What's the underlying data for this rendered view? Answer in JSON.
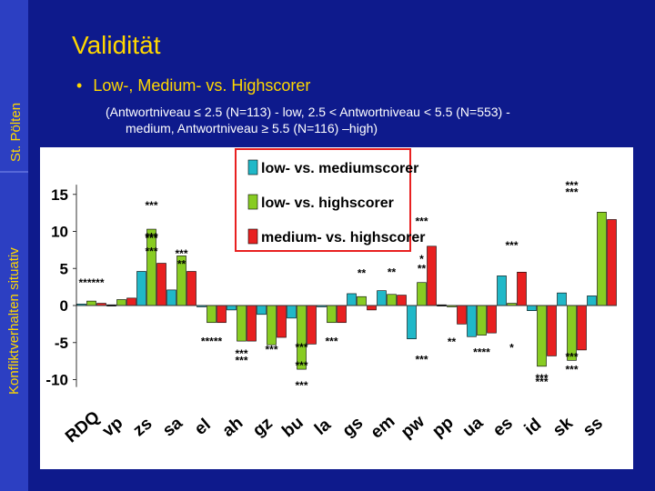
{
  "slide": {
    "title": "Validität",
    "side_label_top": "St. Pölten",
    "side_label_bottom": "Konfliktverhalten situativ",
    "bullet": "Low-, Medium- vs. Highscorer",
    "subtext_line1": "(Antwortniveau ≤ 2.5 (N=113) - low, 2.5 < Antwortniveau  < 5.5  (N=553) -",
    "subtext_line2": "medium, Antwortniveau ≥ 5.5 (N=116) –high)"
  },
  "chart_data": {
    "type": "bar",
    "categories": [
      "RDQ",
      "vp",
      "zs",
      "sa",
      "el",
      "ah",
      "gz",
      "bu",
      "la",
      "gs",
      "em",
      "pw",
      "pp",
      "ua",
      "es",
      "id",
      "sk",
      "ss"
    ],
    "ylim": [
      -11,
      16
    ],
    "yticks": [
      15,
      10,
      5,
      0,
      -5,
      -10
    ],
    "legend_position": "top-center",
    "colors": [
      "#20b8c8",
      "#88cc22",
      "#e82020"
    ],
    "series": [
      {
        "name": "low- vs. mediumscorer",
        "values": [
          0.2,
          0.1,
          4.6,
          2.1,
          0.0,
          -0.6,
          -1.2,
          -1.7,
          0.0,
          1.6,
          2.0,
          -4.5,
          0.1,
          -4.2,
          4.0,
          -0.7,
          1.7,
          1.3
        ]
      },
      {
        "name": "low- vs. highscorer",
        "values": [
          0.6,
          0.8,
          10.3,
          6.7,
          -2.3,
          -4.8,
          -5.3,
          -8.6,
          -2.3,
          1.2,
          1.5,
          3.1,
          0.0,
          -4.0,
          0.3,
          -8.2,
          -7.4,
          12.6
        ]
      },
      {
        "name": "medium- vs. highscorer",
        "values": [
          0.3,
          1.0,
          5.7,
          4.6,
          -2.3,
          -4.8,
          -4.3,
          -5.2,
          -2.3,
          -0.6,
          1.4,
          8.0,
          -2.5,
          -3.7,
          4.5,
          -6.8,
          -6.0,
          11.6
        ]
      }
    ],
    "annotations": [
      {
        "text": "******",
        "x": 0,
        "y": 3.2
      },
      {
        "text": "***",
        "x": 2,
        "y": 13.6
      },
      {
        "text": "***",
        "x": 2,
        "y": 7.4
      },
      {
        "text": "***",
        "x": 2,
        "y": 9.2
      },
      {
        "text": "***",
        "x": 2,
        "y": 9.4
      },
      {
        "text": "**",
        "x": 3,
        "y": 5.7
      },
      {
        "text": "***",
        "x": 3,
        "y": 7.1
      },
      {
        "text": "*****",
        "x": 4,
        "y": -4.7
      },
      {
        "text": "***",
        "x": 5,
        "y": -7.3
      },
      {
        "text": "***",
        "x": 5,
        "y": -6.4
      },
      {
        "text": "***",
        "x": 6,
        "y": -5.8
      },
      {
        "text": "***",
        "x": 7,
        "y": -5.5
      },
      {
        "text": "***",
        "x": 7,
        "y": -10.7
      },
      {
        "text": "***",
        "x": 7,
        "y": -8.0
      },
      {
        "text": "***",
        "x": 8,
        "y": -4.7
      },
      {
        "text": "**",
        "x": 9,
        "y": 4.5
      },
      {
        "text": "**",
        "x": 10,
        "y": 4.6
      },
      {
        "text": "***",
        "x": 11,
        "y": 11.5
      },
      {
        "text": "*",
        "x": 11,
        "y": 6.4
      },
      {
        "text": "**",
        "x": 11,
        "y": 5.1
      },
      {
        "text": "***",
        "x": 11,
        "y": -7.2
      },
      {
        "text": "**",
        "x": 12,
        "y": -4.8
      },
      {
        "text": "****",
        "x": 13,
        "y": -6.2
      },
      {
        "text": "*",
        "x": 14,
        "y": -5.6
      },
      {
        "text": "***",
        "x": 14,
        "y": 8.2
      },
      {
        "text": "***",
        "x": 15,
        "y": -10.2
      },
      {
        "text": "***",
        "x": 15,
        "y": -9.7
      },
      {
        "text": "***",
        "x": 16,
        "y": -6.8
      },
      {
        "text": "***",
        "x": 16,
        "y": -8.5
      },
      {
        "text": "***",
        "x": 16,
        "y": 16.3
      },
      {
        "text": "***",
        "x": 16,
        "y": 15.4
      }
    ]
  }
}
